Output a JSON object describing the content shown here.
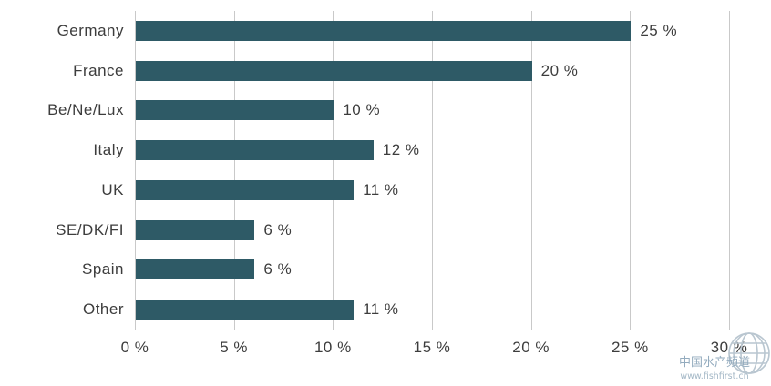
{
  "chart_data": {
    "type": "bar",
    "orientation": "horizontal",
    "title": "",
    "xlabel": "",
    "ylabel": "",
    "categories": [
      "Germany",
      "France",
      "Be/Ne/Lux",
      "Italy",
      "UK",
      "SE/DK/FI",
      "Spain",
      "Other"
    ],
    "values": [
      25,
      20,
      10,
      12,
      11,
      6,
      6,
      11
    ],
    "value_labels": [
      "25 %",
      "20 %",
      "10 %",
      "12 %",
      "11 %",
      "6 %",
      "6 %",
      "11 %"
    ],
    "x_ticks": [
      0,
      5,
      10,
      15,
      20,
      25,
      30
    ],
    "x_tick_labels": [
      "0 %",
      "5 %",
      "10 %",
      "15 %",
      "20 %",
      "25 %",
      "30 %"
    ],
    "xlim": [
      0,
      30
    ],
    "grid": true,
    "legend": "none",
    "bar_color": "#2E5A66",
    "grid_color": "#c9c9c9"
  },
  "watermark": {
    "line1": "中国水产频道",
    "line2": "www.fishfirst.cn",
    "color": "#9db3c4"
  }
}
